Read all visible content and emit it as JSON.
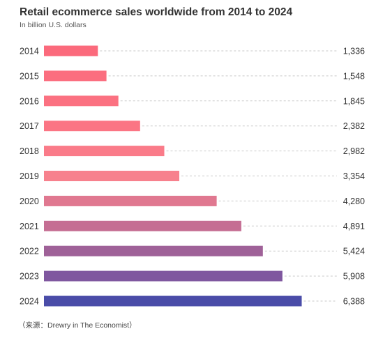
{
  "chart_data": {
    "type": "bar",
    "orientation": "horizontal",
    "title": "Retail ecommerce sales worldwide from 2014 to 2024",
    "subtitle": "In billion U.S. dollars",
    "categories": [
      "2014",
      "2015",
      "2016",
      "2017",
      "2018",
      "2019",
      "2020",
      "2021",
      "2022",
      "2023",
      "2024"
    ],
    "values": [
      1336,
      1548,
      1845,
      2382,
      2982,
      3354,
      4280,
      4891,
      5424,
      5908,
      6388
    ],
    "value_labels": [
      "1,336",
      "1,548",
      "1,845",
      "2,382",
      "2,982",
      "3,354",
      "4,280",
      "4,891",
      "5,424",
      "5,908",
      "6,388"
    ],
    "bar_colors": [
      "#fb6a7c",
      "#fb6e7f",
      "#fb7181",
      "#fb7584",
      "#fa7b89",
      "#f7818d",
      "#e07890",
      "#c56e93",
      "#9f6198",
      "#7f579f",
      "#4a4ca8"
    ],
    "gridline_style": "dashed",
    "gridline_color": "#c9c9c9",
    "source": "（来源：Drewry in The Economist）"
  }
}
